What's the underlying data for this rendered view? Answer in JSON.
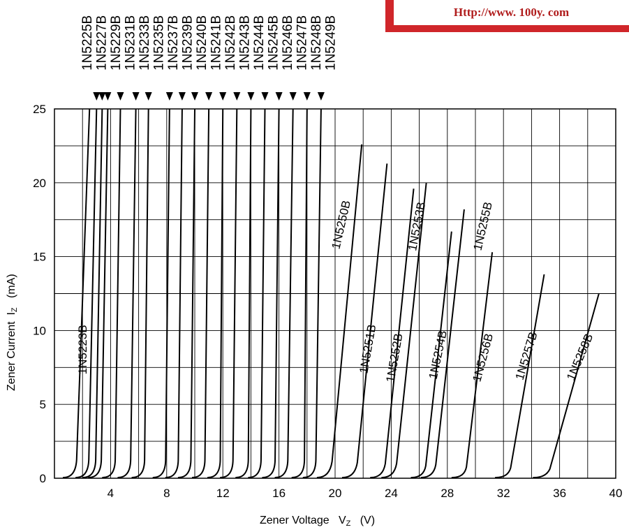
{
  "url_text": "Http://www. 100y. com",
  "axis": {
    "y_main": "Zener Current",
    "y_sym": "I",
    "y_sub": "Z",
    "y_unit": "(mA)",
    "x_main": "Zener Voltage",
    "x_sym": "V",
    "x_sub": "Z",
    "x_unit": "(V)"
  },
  "chart_data": {
    "type": "line",
    "xlabel": "Zener Voltage VZ (V)",
    "ylabel": "Zener Current IZ (mA)",
    "xlim": [
      0,
      40
    ],
    "ylim": [
      0,
      25
    ],
    "x_ticks": [
      4,
      8,
      12,
      16,
      20,
      24,
      28,
      32,
      36,
      40
    ],
    "y_ticks": [
      0,
      5,
      10,
      15,
      20,
      25
    ],
    "grid": true,
    "top_labels": [
      "1N5225B",
      "1N5227B",
      "1N5229B",
      "1N5231B",
      "1N5233B",
      "1N5235B",
      "1N5237B",
      "1N5239B",
      "1N5240B",
      "1N5241B",
      "1N5242B",
      "1N5243B",
      "1N5244B",
      "1N5245B",
      "1N5246B",
      "1N5247B",
      "1N5248B",
      "1N5249B"
    ],
    "series": [
      {
        "name": "1N5223B",
        "knee": 1.5,
        "end": [
          2.5,
          25
        ]
      },
      {
        "name": "1N5225B",
        "knee": 2.4,
        "end": [
          3.0,
          25
        ]
      },
      {
        "name": "1N5227B",
        "knee": 2.9,
        "end": [
          3.4,
          25
        ]
      },
      {
        "name": "1N5229B",
        "knee": 3.3,
        "end": [
          3.8,
          25
        ]
      },
      {
        "name": "1N5231B",
        "knee": 4.3,
        "end": [
          4.7,
          25
        ]
      },
      {
        "name": "1N5233B",
        "knee": 5.4,
        "end": [
          5.8,
          25
        ]
      },
      {
        "name": "1N5235B",
        "knee": 6.4,
        "end": [
          6.7,
          25
        ]
      },
      {
        "name": "1N5237B",
        "knee": 7.9,
        "end": [
          8.2,
          25
        ]
      },
      {
        "name": "1N5239B",
        "knee": 8.8,
        "end": [
          9.1,
          25
        ]
      },
      {
        "name": "1N5240B",
        "knee": 9.7,
        "end": [
          10.0,
          25
        ]
      },
      {
        "name": "1N5241B",
        "knee": 10.7,
        "end": [
          11.0,
          25
        ]
      },
      {
        "name": "1N5242B",
        "knee": 11.8,
        "end": [
          12.0,
          25
        ]
      },
      {
        "name": "1N5243B",
        "knee": 12.7,
        "end": [
          13.0,
          25
        ]
      },
      {
        "name": "1N5244B",
        "knee": 13.8,
        "end": [
          14.0,
          25
        ]
      },
      {
        "name": "1N5245B",
        "knee": 14.7,
        "end": [
          15.0,
          25
        ]
      },
      {
        "name": "1N5246B",
        "knee": 15.7,
        "end": [
          16.0,
          25
        ]
      },
      {
        "name": "1N5247B",
        "knee": 16.6,
        "end": [
          17.0,
          25
        ]
      },
      {
        "name": "1N5248B",
        "knee": 17.8,
        "end": [
          18.0,
          25
        ]
      },
      {
        "name": "1N5249B",
        "knee": 18.6,
        "end": [
          19.0,
          25
        ]
      },
      {
        "name": "1N5250B",
        "knee": 19.6,
        "end": [
          21.9,
          22.6
        ]
      },
      {
        "name": "1N5251B",
        "knee": 21.4,
        "end": [
          23.7,
          21.3
        ]
      },
      {
        "name": "1N5252B",
        "knee": 23.4,
        "end": [
          25.6,
          19.6
        ]
      },
      {
        "name": "1N5253B",
        "knee": 24.2,
        "end": [
          26.5,
          20.0
        ]
      },
      {
        "name": "1N5254B",
        "knee": 26.3,
        "end": [
          28.3,
          16.7
        ]
      },
      {
        "name": "1N5255B",
        "knee": 27.0,
        "end": [
          29.2,
          18.2
        ]
      },
      {
        "name": "1N5256B",
        "knee": 29.2,
        "end": [
          31.2,
          15.3
        ]
      },
      {
        "name": "1N5257B",
        "knee": 32.3,
        "end": [
          34.9,
          13.8
        ]
      },
      {
        "name": "1N5258B",
        "knee": 35.0,
        "end": [
          38.8,
          12.5
        ]
      }
    ],
    "curve_labels": [
      {
        "name": "1N5223B",
        "x": 2.3,
        "y": 8.7,
        "angle": -90
      },
      {
        "name": "1N5250B",
        "x": 20.7,
        "y": 17.1,
        "angle": -77
      },
      {
        "name": "1N5251B",
        "x": 22.6,
        "y": 8.7,
        "angle": -80
      },
      {
        "name": "1N5252B",
        "x": 24.5,
        "y": 8.1,
        "angle": -80
      },
      {
        "name": "1N5253B",
        "x": 26.1,
        "y": 17.0,
        "angle": -79
      },
      {
        "name": "1N5254B",
        "x": 27.6,
        "y": 8.3,
        "angle": -78
      },
      {
        "name": "1N5255B",
        "x": 30.8,
        "y": 17.0,
        "angle": -77
      },
      {
        "name": "1N5256B",
        "x": 30.8,
        "y": 8.1,
        "angle": -75
      },
      {
        "name": "1N5257B",
        "x": 33.9,
        "y": 8.2,
        "angle": -73
      },
      {
        "name": "1N5258B",
        "x": 37.7,
        "y": 8.1,
        "angle": -67
      }
    ]
  }
}
